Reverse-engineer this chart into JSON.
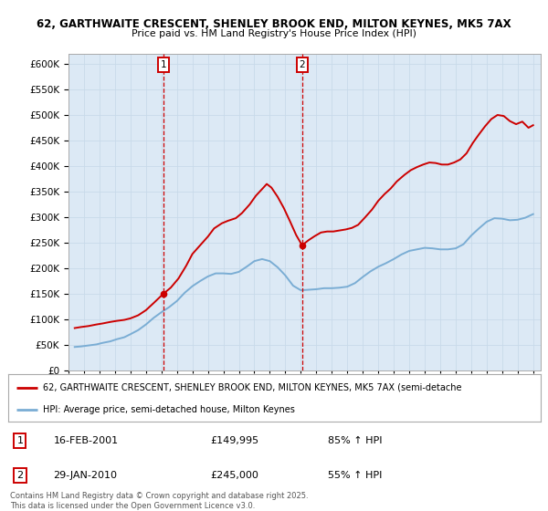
{
  "title_line1": "62, GARTHWAITE CRESCENT, SHENLEY BROOK END, MILTON KEYNES, MK5 7AX",
  "title_line2": "Price paid vs. HM Land Registry's House Price Index (HPI)",
  "background_color": "#ffffff",
  "grid_color": "#c8daea",
  "plot_bg_color": "#dce9f5",
  "red_line_color": "#cc0000",
  "blue_line_color": "#7aadd4",
  "marker1_x": 2001.12,
  "marker2_x": 2010.08,
  "legend_red_label": "62, GARTHWAITE CRESCENT, SHENLEY BROOK END, MILTON KEYNES, MK5 7AX (semi-detache",
  "legend_blue_label": "HPI: Average price, semi-detached house, Milton Keynes",
  "footer": "Contains HM Land Registry data © Crown copyright and database right 2025.\nThis data is licensed under the Open Government Licence v3.0.",
  "ylim": [
    0,
    620000
  ],
  "yticks": [
    0,
    50000,
    100000,
    150000,
    200000,
    250000,
    300000,
    350000,
    400000,
    450000,
    500000,
    550000,
    600000
  ],
  "red_data_x": [
    1995.4,
    1995.8,
    1996.3,
    1996.8,
    1997.2,
    1997.7,
    1998.1,
    1998.6,
    1999.0,
    1999.5,
    2000.0,
    2000.5,
    2001.12,
    2001.6,
    2002.1,
    2002.6,
    2003.0,
    2003.5,
    2004.0,
    2004.4,
    2004.9,
    2005.3,
    2005.8,
    2006.2,
    2006.7,
    2007.1,
    2007.5,
    2007.8,
    2008.1,
    2008.5,
    2008.9,
    2009.3,
    2009.7,
    2010.08,
    2010.5,
    2010.9,
    2011.3,
    2011.7,
    2012.1,
    2012.5,
    2012.9,
    2013.3,
    2013.7,
    2014.1,
    2014.6,
    2015.0,
    2015.4,
    2015.8,
    2016.2,
    2016.7,
    2017.1,
    2017.5,
    2017.9,
    2018.3,
    2018.7,
    2019.1,
    2019.5,
    2019.9,
    2020.3,
    2020.7,
    2021.1,
    2021.5,
    2021.9,
    2022.3,
    2022.7,
    2023.1,
    2023.5,
    2023.9,
    2024.3,
    2024.7,
    2025.0
  ],
  "red_data_y": [
    83000,
    85000,
    87000,
    90000,
    92000,
    95000,
    97000,
    99000,
    102000,
    108000,
    118000,
    132000,
    149995,
    162000,
    180000,
    205000,
    228000,
    245000,
    262000,
    278000,
    288000,
    293000,
    298000,
    308000,
    325000,
    342000,
    355000,
    365000,
    358000,
    340000,
    318000,
    292000,
    265000,
    245000,
    255000,
    263000,
    270000,
    272000,
    272000,
    274000,
    276000,
    279000,
    285000,
    298000,
    315000,
    332000,
    345000,
    356000,
    370000,
    383000,
    392000,
    398000,
    403000,
    407000,
    406000,
    403000,
    403000,
    407000,
    413000,
    425000,
    445000,
    462000,
    478000,
    492000,
    500000,
    498000,
    488000,
    482000,
    487000,
    475000,
    480000
  ],
  "blue_data_x": [
    1995.4,
    1995.8,
    1996.3,
    1996.8,
    1997.2,
    1997.7,
    1998.1,
    1998.6,
    1999.0,
    1999.5,
    2000.0,
    2000.5,
    2001.0,
    2001.5,
    2002.0,
    2002.5,
    2003.0,
    2003.5,
    2004.0,
    2004.5,
    2005.0,
    2005.5,
    2006.0,
    2006.5,
    2007.0,
    2007.5,
    2008.0,
    2008.5,
    2009.0,
    2009.5,
    2010.0,
    2010.5,
    2011.0,
    2011.5,
    2012.0,
    2012.5,
    2013.0,
    2013.5,
    2014.0,
    2014.5,
    2015.0,
    2015.5,
    2016.0,
    2016.5,
    2017.0,
    2017.5,
    2018.0,
    2018.5,
    2019.0,
    2019.5,
    2020.0,
    2020.5,
    2021.0,
    2021.5,
    2022.0,
    2022.5,
    2023.0,
    2023.5,
    2024.0,
    2024.5,
    2025.0
  ],
  "blue_data_y": [
    46000,
    47000,
    49000,
    51000,
    54000,
    57000,
    61000,
    65000,
    71000,
    79000,
    90000,
    103000,
    114000,
    124000,
    136000,
    152000,
    165000,
    175000,
    184000,
    190000,
    190000,
    189000,
    193000,
    203000,
    214000,
    218000,
    214000,
    202000,
    186000,
    166000,
    157000,
    158000,
    159000,
    161000,
    161000,
    162000,
    164000,
    171000,
    183000,
    194000,
    203000,
    210000,
    218000,
    227000,
    234000,
    237000,
    240000,
    239000,
    237000,
    237000,
    239000,
    247000,
    264000,
    278000,
    291000,
    298000,
    297000,
    294000,
    295000,
    299000,
    306000
  ],
  "xtick_years": [
    1995,
    1996,
    1997,
    1998,
    1999,
    2000,
    2001,
    2002,
    2003,
    2004,
    2005,
    2006,
    2007,
    2008,
    2009,
    2010,
    2011,
    2012,
    2013,
    2014,
    2015,
    2016,
    2017,
    2018,
    2019,
    2020,
    2021,
    2022,
    2023,
    2024,
    2025
  ]
}
